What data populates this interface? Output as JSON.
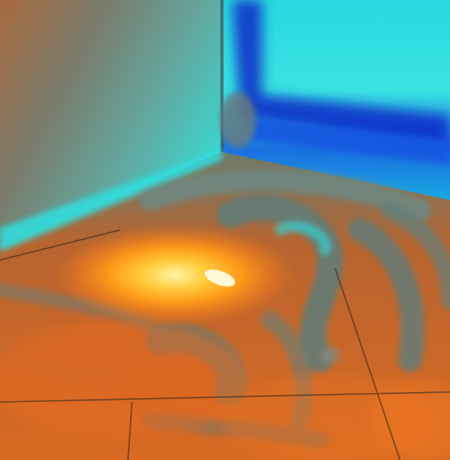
{
  "image": {
    "kind": "false-color thermal view of a room corner",
    "palette": {
      "hot_core": "#fff2a0",
      "hot": "#ffb020",
      "warm": "#f07020",
      "warm_dark": "#c05a28",
      "neutral": "#6a7a78",
      "cool": "#55c8c8",
      "cold": "#2ee0e0",
      "colder": "#1a6ee0",
      "coldest": "#0a20c0"
    },
    "regions": [
      "left-wall",
      "right-wall",
      "corner-edge",
      "floor",
      "floor-hotspot",
      "floor-tile-grid"
    ]
  }
}
